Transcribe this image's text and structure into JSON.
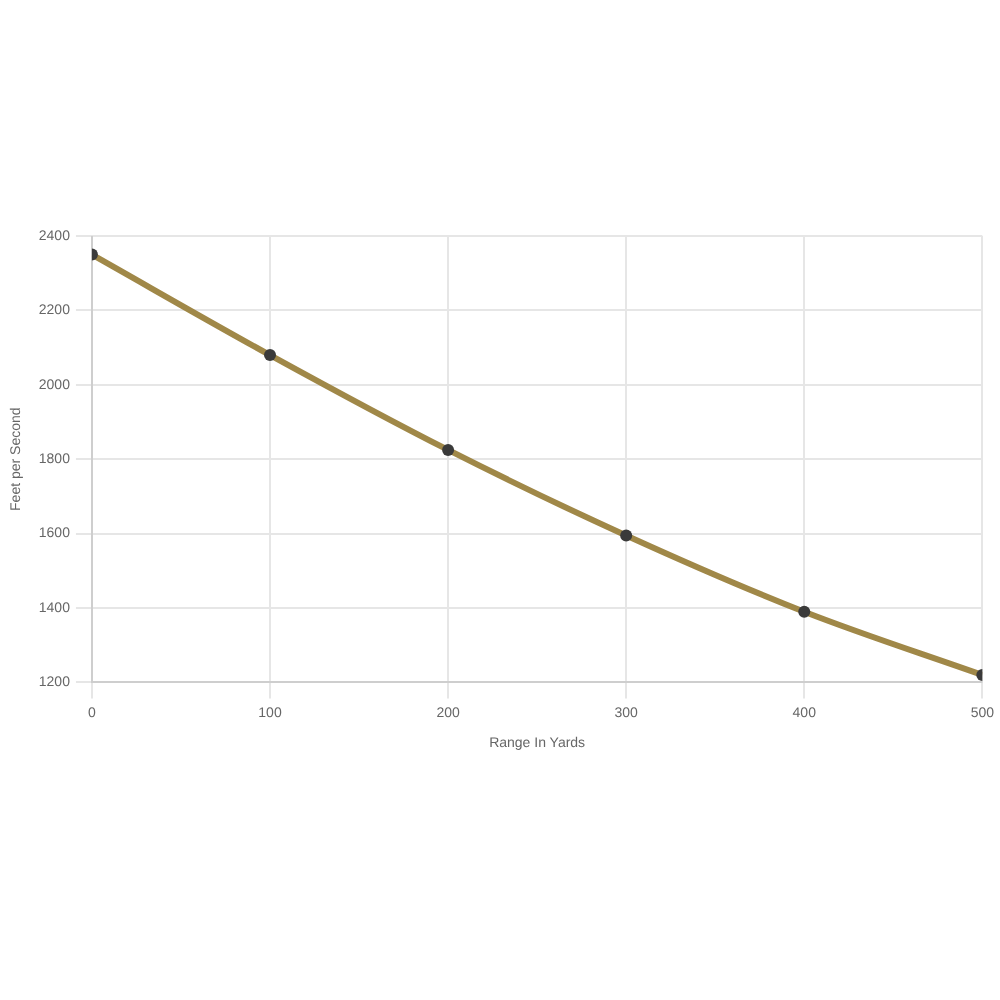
{
  "chart_data": {
    "type": "line",
    "xlabel": "Range In Yards",
    "ylabel": "Feet per Second",
    "x": [
      0,
      100,
      200,
      300,
      400,
      500
    ],
    "series": [
      {
        "color": "#a08848",
        "values": [
          2350,
          2080,
          1825,
          1595,
          1390,
          1220
        ]
      }
    ],
    "xlim": [
      0,
      500
    ],
    "xticks": [
      0,
      100,
      200,
      300,
      400,
      500
    ],
    "ylim": [
      1200,
      2400
    ],
    "yticks": [
      1200,
      1400,
      1600,
      1800,
      2000,
      2200,
      2400
    ],
    "grid": true,
    "legend": false,
    "marker": "circle",
    "line_style": "solid"
  }
}
